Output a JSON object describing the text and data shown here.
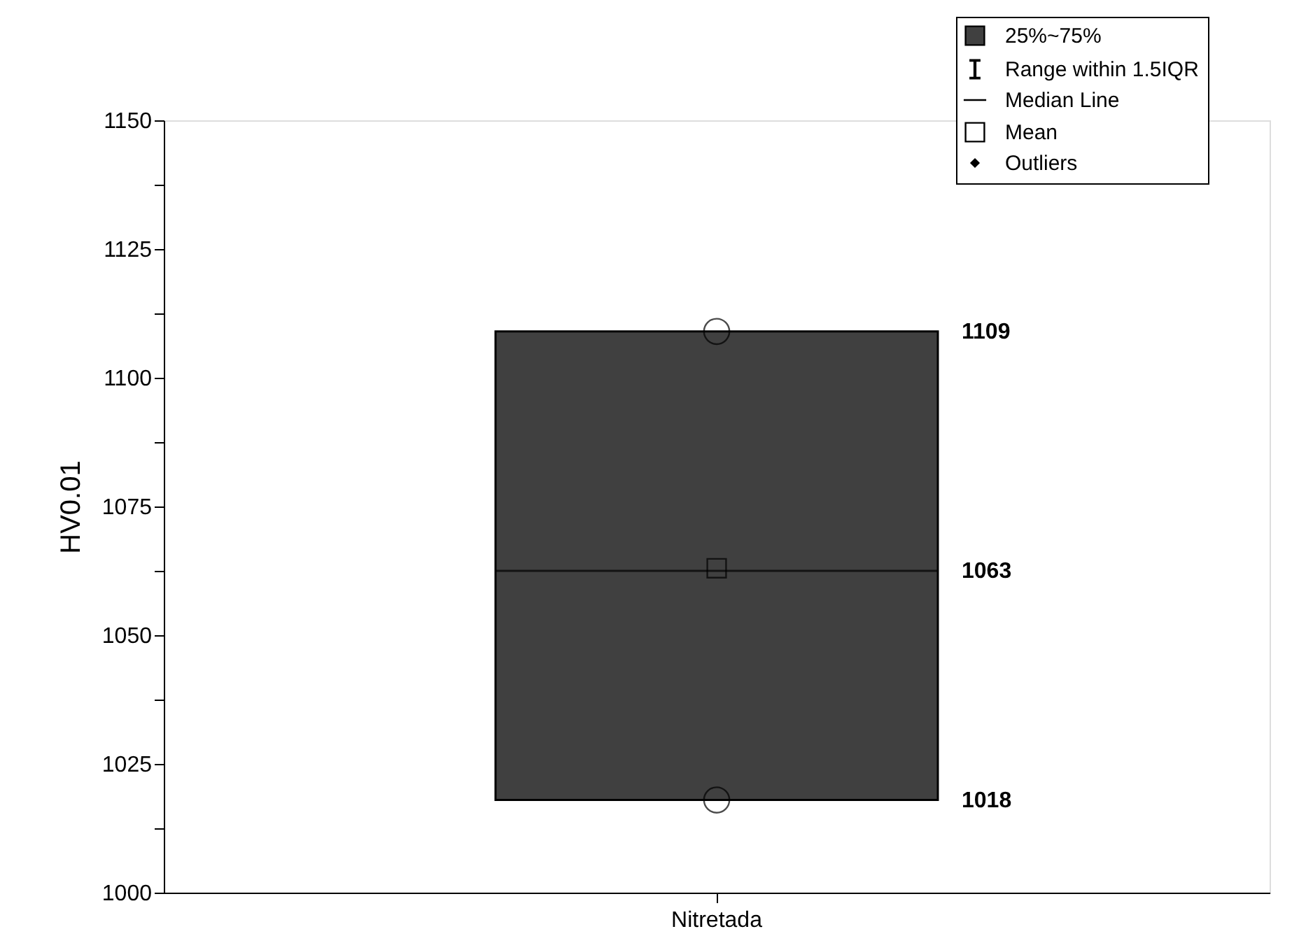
{
  "chart_data": {
    "type": "box",
    "ylabel": "HV0.01",
    "categories": [
      "Nitretada"
    ],
    "legend": "top right",
    "grid": false,
    "ylim": [
      1000,
      1150
    ],
    "yticks": [
      1000,
      {
        "value": 1012.5,
        "label": null
      },
      1025,
      {
        "value": 1037.5,
        "label": null
      },
      1050,
      {
        "value": 1062.5,
        "label": null
      },
      1075,
      {
        "value": 1087.5,
        "label": null
      },
      1100,
      {
        "value": 1112.5,
        "label": null
      },
      1125,
      {
        "value": 1137.5,
        "label": null
      },
      1150
    ],
    "series": [
      {
        "name": "25%~75%",
        "type": "box",
        "color": "#404040",
        "boxes": [
          {
            "low": 1018,
            "q1": 1018,
            "median": 1062.5,
            "q3": 1109,
            "high": 1109
          }
        ]
      },
      {
        "type": "scatter",
        "x": [
          "Nitretada",
          "Nitretada"
        ],
        "values": [
          1109,
          1018
        ],
        "marker": "circle",
        "color": "#000000"
      },
      {
        "name": "Mean",
        "type": "scatter",
        "x": [
          "Nitretada"
        ],
        "values": [
          1063
        ],
        "marker": "square",
        "color": "#000000"
      },
      {
        "name": "Outliers",
        "type": "scatter",
        "x": [
          "Nitretada"
        ],
        "values": [
          null
        ],
        "marker": "diamond",
        "color": "#000000"
      }
    ],
    "annotations": [
      "1109",
      "1063",
      "1018",
      "Range within 1.5IQR",
      "Median Line"
    ]
  }
}
